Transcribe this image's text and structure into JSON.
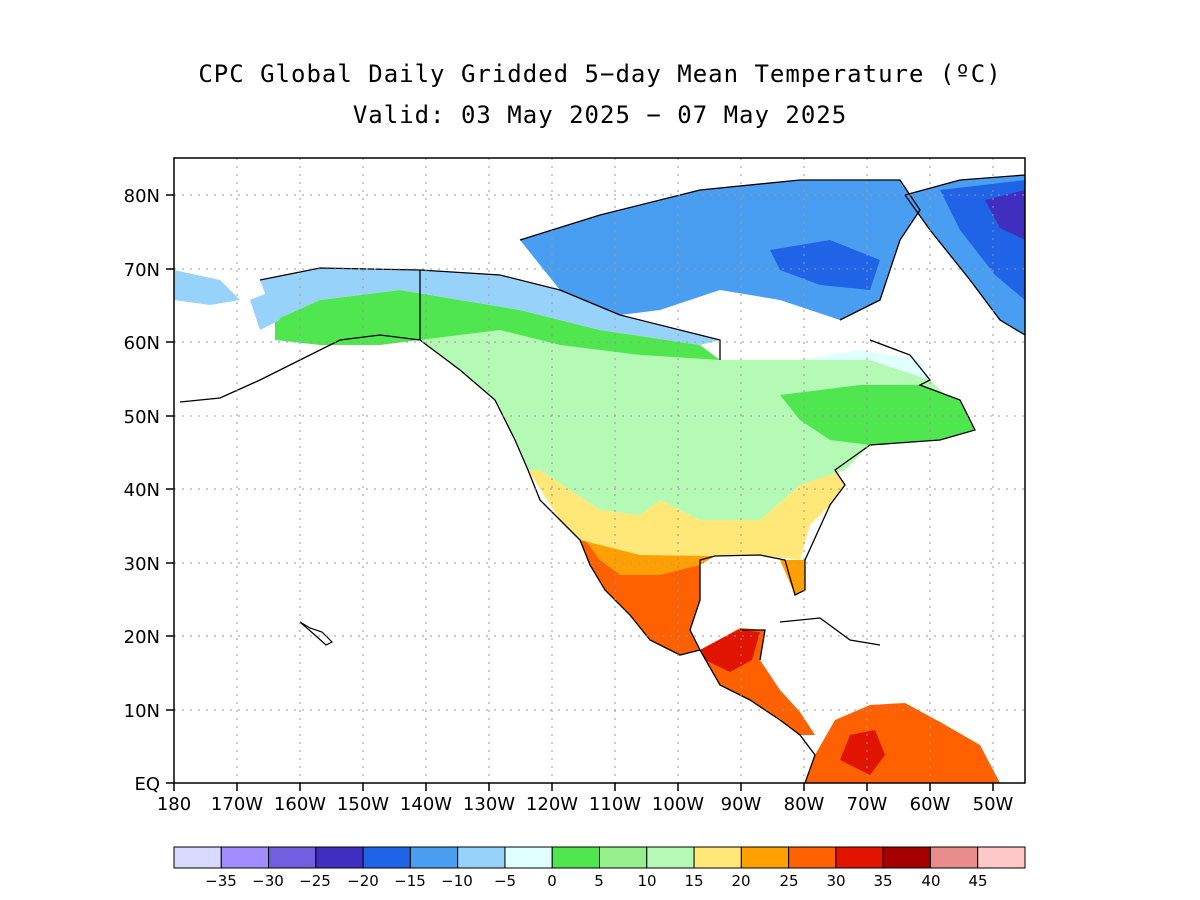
{
  "title": "CPC Global Daily Gridded 5−day Mean Temperature (ºC)",
  "subtitle": "Valid: 03 May 2025 − 07 May 2025",
  "map": {
    "lon_range": [
      -180,
      -45
    ],
    "lat_range": [
      0,
      85
    ],
    "lat_labels": [
      "EQ",
      "10N",
      "20N",
      "30N",
      "40N",
      "50N",
      "60N",
      "70N",
      "80N"
    ],
    "lon_labels": [
      "180",
      "170W",
      "160W",
      "150W",
      "140W",
      "130W",
      "120W",
      "110W",
      "100W",
      "90W",
      "80W",
      "70W",
      "60W",
      "50W"
    ],
    "grid": "dotted",
    "background": "#ffffff"
  },
  "colorbar": {
    "colors": [
      "#d9d9ff",
      "#a08cff",
      "#7060e0",
      "#3f2ec0",
      "#1f64e6",
      "#4a9ef2",
      "#96d2fa",
      "#e0ffff",
      "#50e650",
      "#96f08c",
      "#b4fab4",
      "#ffe878",
      "#ffa000",
      "#ff6000",
      "#e01400",
      "#a50000",
      "#e88c8c",
      "#ffc8c8"
    ],
    "labels": [
      "−35",
      "−30",
      "−25",
      "−20",
      "−15",
      "−10",
      "−5",
      "0",
      "5",
      "10",
      "15",
      "20",
      "25",
      "30",
      "35",
      "40",
      "45"
    ]
  }
}
